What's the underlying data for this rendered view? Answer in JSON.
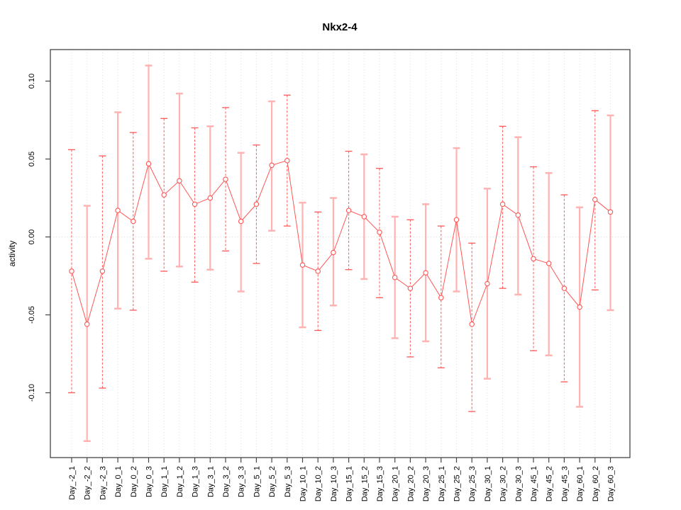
{
  "chart_data": {
    "type": "scatter",
    "title": "Nkx2-4",
    "ylabel": "activity",
    "xlabel": "",
    "legend": "none",
    "grid": "vertical dotted gridline per category; dotted horizontal line at y=0",
    "ylim": [
      -0.141,
      0.121
    ],
    "y_tick_labels": [
      "0.10",
      "0.05",
      "0.00",
      "-0.05",
      "-0.10"
    ],
    "y_tick_values": [
      0.1,
      0.05,
      0.0,
      -0.05,
      -0.1
    ],
    "categories": [
      "Day_-2_1",
      "Day_-2_2",
      "Day_-2_3",
      "Day_0_1",
      "Day_0_2",
      "Day_0_3",
      "Day_1_1",
      "Day_1_2",
      "Day_1_3",
      "Day_3_1",
      "Day_3_2",
      "Day_3_3",
      "Day_5_1",
      "Day_5_2",
      "Day_5_3",
      "Day_10_1",
      "Day_10_2",
      "Day_10_3",
      "Day_15_1",
      "Day_15_2",
      "Day_15_3",
      "Day_20_1",
      "Day_20_2",
      "Day_20_3",
      "Day_25_1",
      "Day_25_2",
      "Day_25_3",
      "Day_30_1",
      "Day_30_2",
      "Day_30_3",
      "Day_45_1",
      "Day_45_2",
      "Day_45_3",
      "Day_60_1",
      "Day_60_2",
      "Day_60_3"
    ],
    "series": [
      {
        "name": "activity",
        "marker": "open-circle",
        "connected": true,
        "means": [
          -0.022,
          -0.056,
          -0.022,
          0.017,
          0.01,
          0.047,
          0.027,
          0.036,
          0.021,
          0.025,
          0.037,
          0.01,
          0.021,
          0.046,
          0.049,
          -0.018,
          -0.022,
          -0.01,
          0.017,
          0.013,
          0.003,
          -0.026,
          -0.033,
          -0.023,
          -0.039,
          0.011,
          -0.056,
          -0.03,
          0.021,
          0.014,
          -0.014,
          -0.017,
          -0.033,
          -0.045,
          0.024,
          0.016
        ],
        "lower": [
          -0.1,
          -0.131,
          -0.097,
          -0.046,
          -0.047,
          -0.014,
          -0.022,
          -0.019,
          -0.029,
          -0.021,
          -0.009,
          -0.035,
          -0.017,
          0.004,
          0.007,
          -0.058,
          -0.06,
          -0.044,
          -0.021,
          -0.027,
          -0.039,
          -0.065,
          -0.077,
          -0.067,
          -0.084,
          -0.035,
          -0.112,
          -0.091,
          -0.033,
          -0.037,
          -0.073,
          -0.076,
          -0.093,
          -0.109,
          -0.034,
          -0.047
        ],
        "upper": [
          0.056,
          0.02,
          0.052,
          0.08,
          0.067,
          0.11,
          0.076,
          0.092,
          0.07,
          0.071,
          0.083,
          0.054,
          0.059,
          0.087,
          0.091,
          0.022,
          0.016,
          0.025,
          0.055,
          0.053,
          0.044,
          0.013,
          0.011,
          0.021,
          0.007,
          0.057,
          -0.004,
          0.031,
          0.071,
          0.064,
          0.045,
          0.041,
          0.027,
          0.019,
          0.081,
          0.078
        ]
      }
    ],
    "colors": {
      "point": "#ff5555",
      "line": "#ff5555",
      "errorbar_dashed": "#ff5959",
      "errorbar_solid": "#ffb3b3",
      "gridline": "#dcdcdc",
      "zero_line": "#d9d9d9",
      "axis": "#454545",
      "text": "#000000"
    }
  }
}
